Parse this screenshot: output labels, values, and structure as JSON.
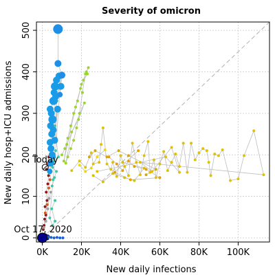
{
  "chart_data": {
    "type": "scatter",
    "title": "Severity of omicron",
    "xlabel": "New daily infections",
    "ylabel": "New daily hosp+ICU admissions",
    "xlim": [
      -3000,
      116000
    ],
    "ylim": [
      -10,
      520
    ],
    "x_ticks": [
      0,
      20000,
      40000,
      60000,
      80000,
      100000
    ],
    "x_tick_labels": [
      "0K",
      "20K",
      "40K",
      "60K",
      "80K",
      "100K"
    ],
    "y_ticks": [
      0,
      100,
      200,
      300,
      400,
      500
    ],
    "y_tick_labels": [
      "0",
      "100",
      "200",
      "300",
      "400",
      "500"
    ],
    "grid": true,
    "reference_line": {
      "style": "dashed",
      "color": "#b0b0b0",
      "points": [
        [
          0,
          0
        ],
        [
          116000,
          520
        ]
      ]
    },
    "annotations": [
      {
        "text": "Today",
        "x": 1500,
        "y": 170
      },
      {
        "text": "Oct 17, 2020",
        "x": 0,
        "y": 0
      }
    ],
    "series": [
      {
        "color": "#0a1a8a",
        "points": [
          [
            1000,
            5,
            3
          ],
          [
            1300,
            2,
            3
          ],
          [
            1600,
            0,
            3
          ],
          [
            1900,
            -1,
            3
          ],
          [
            2200,
            1,
            3
          ],
          [
            2500,
            -1,
            3
          ],
          [
            2800,
            3,
            3
          ],
          [
            1500,
            6,
            3
          ],
          [
            2000,
            4,
            3
          ]
        ]
      },
      {
        "color": "#1a5fd6",
        "points": [
          [
            3000,
            2,
            2
          ],
          [
            4500,
            1,
            2
          ],
          [
            6000,
            0,
            2
          ],
          [
            7500,
            1,
            2
          ],
          [
            9000,
            0,
            2
          ],
          [
            10500,
            0,
            2
          ]
        ]
      },
      {
        "color": "#8a1a1a",
        "points": [
          [
            500,
            20,
            2
          ],
          [
            900,
            30,
            2
          ],
          [
            1200,
            45,
            2
          ],
          [
            1800,
            55,
            2
          ],
          [
            1400,
            75,
            2
          ],
          [
            2400,
            90,
            2
          ],
          [
            2000,
            110,
            2
          ],
          [
            2800,
            130,
            2
          ],
          [
            3200,
            150,
            2
          ],
          [
            2600,
            180,
            2
          ],
          [
            3300,
            195,
            2
          ],
          [
            2100,
            165,
            2
          ]
        ]
      },
      {
        "color": "#d45a1a",
        "points": [
          [
            1500,
            60,
            2
          ],
          [
            2500,
            80,
            2
          ],
          [
            3300,
            120,
            2
          ],
          [
            3900,
            140,
            2
          ],
          [
            4500,
            160,
            2
          ],
          [
            3700,
            175,
            2
          ]
        ]
      },
      {
        "color": "#a0a0a0",
        "points": [
          [
            800,
            25,
            2
          ],
          [
            1800,
            40,
            2
          ],
          [
            2800,
            70,
            2
          ],
          [
            3500,
            95,
            2
          ],
          [
            4300,
            110,
            2
          ]
        ]
      },
      {
        "color": "#3cc7a8",
        "points": [
          [
            5000,
            125,
            2
          ],
          [
            6200,
            145,
            2
          ],
          [
            7200,
            160,
            2
          ],
          [
            5200,
            170,
            2
          ],
          [
            6000,
            185,
            2
          ],
          [
            8200,
            195,
            2
          ],
          [
            7000,
            240,
            2
          ],
          [
            6500,
            270,
            2
          ],
          [
            7500,
            330,
            2
          ],
          [
            8000,
            360,
            2
          ],
          [
            9500,
            390,
            2
          ],
          [
            6800,
            210,
            2
          ],
          [
            5500,
            140,
            2
          ],
          [
            3800,
            48,
            2
          ],
          [
            5200,
            30,
            2
          ],
          [
            6500,
            40,
            2
          ],
          [
            4800,
            70,
            2
          ],
          [
            6500,
            90,
            2
          ]
        ]
      },
      {
        "color": "#1a9be8",
        "points": [
          [
            3800,
            160,
            4
          ],
          [
            4300,
            180,
            5
          ],
          [
            5000,
            200,
            5
          ],
          [
            4000,
            230,
            5
          ],
          [
            4800,
            250,
            5
          ],
          [
            4200,
            270,
            5
          ],
          [
            5200,
            285,
            6
          ],
          [
            4600,
            300,
            5
          ],
          [
            4000,
            310,
            5
          ],
          [
            5700,
            330,
            6
          ],
          [
            6000,
            350,
            5
          ],
          [
            6500,
            365,
            6
          ],
          [
            7200,
            380,
            5
          ],
          [
            8500,
            390,
            5
          ],
          [
            9500,
            365,
            5
          ],
          [
            6800,
            340,
            5
          ],
          [
            5600,
            260,
            5
          ],
          [
            4400,
            215,
            5
          ],
          [
            7800,
            310,
            5
          ],
          [
            6300,
            235,
            5
          ],
          [
            5500,
            195,
            4
          ]
        ]
      },
      {
        "color": "#1f8fe5",
        "points": [
          [
            8000,
            503,
            7
          ],
          [
            8000,
            420,
            5
          ],
          [
            10000,
            392,
            5
          ],
          [
            9000,
            345,
            4
          ]
        ]
      },
      {
        "color": "#9bd42a",
        "points": [
          [
            10000,
            200,
            2
          ],
          [
            11500,
            215,
            2
          ],
          [
            13000,
            240,
            2
          ],
          [
            14500,
            270,
            2
          ],
          [
            16000,
            300,
            2
          ],
          [
            18000,
            330,
            2
          ],
          [
            19500,
            360,
            2
          ],
          [
            21000,
            380,
            2
          ],
          [
            22500,
            400,
            2
          ],
          [
            23500,
            410,
            2
          ],
          [
            22000,
            395,
            2
          ],
          [
            20500,
            350,
            2
          ],
          [
            19000,
            300,
            2
          ],
          [
            17500,
            265,
            2
          ],
          [
            16000,
            235,
            2
          ],
          [
            14500,
            215,
            2
          ],
          [
            13000,
            195,
            2
          ],
          [
            12000,
            180,
            2
          ],
          [
            15000,
            255,
            2
          ],
          [
            18500,
            285,
            2
          ],
          [
            21500,
            325,
            2
          ],
          [
            12500,
            225,
            2
          ],
          [
            11000,
            185,
            2
          ],
          [
            17000,
            315,
            2
          ],
          [
            20000,
            370,
            2
          ],
          [
            23000,
            395,
            2
          ]
        ]
      },
      {
        "color": "#e2c100",
        "points": [
          [
            15000,
            162,
            2
          ],
          [
            19000,
            185,
            2
          ],
          [
            22000,
            170,
            2
          ],
          [
            25000,
            205,
            2
          ],
          [
            26000,
            178,
            2
          ],
          [
            29000,
            182,
            2
          ],
          [
            30000,
            225,
            2
          ],
          [
            31000,
            265,
            2
          ],
          [
            33000,
            178,
            2
          ],
          [
            35000,
            165,
            2
          ],
          [
            36000,
            182,
            2
          ],
          [
            38000,
            148,
            2
          ],
          [
            40000,
            198,
            2
          ],
          [
            42000,
            172,
            2
          ],
          [
            44000,
            150,
            2
          ],
          [
            46000,
            228,
            2
          ],
          [
            48000,
            182,
            2
          ],
          [
            50000,
            152,
            2
          ],
          [
            52000,
            198,
            2
          ],
          [
            54000,
            232,
            2
          ],
          [
            55000,
            158,
            2
          ],
          [
            57000,
            188,
            2
          ],
          [
            58000,
            145,
            2
          ],
          [
            60000,
            178,
            2
          ],
          [
            62000,
            208,
            2
          ],
          [
            64000,
            162,
            2
          ],
          [
            66000,
            182,
            2
          ],
          [
            68000,
            202,
            2
          ],
          [
            70000,
            172,
            2
          ],
          [
            72000,
            228,
            2
          ],
          [
            74000,
            158,
            2
          ],
          [
            76000,
            228,
            2
          ],
          [
            78000,
            188,
            2
          ],
          [
            80000,
            205,
            2
          ],
          [
            82000,
            215,
            2
          ],
          [
            84000,
            210,
            2
          ],
          [
            85000,
            182,
            2
          ],
          [
            86000,
            150,
            2
          ],
          [
            88000,
            202,
            2
          ],
          [
            90000,
            198,
            2
          ],
          [
            92000,
            212,
            2
          ],
          [
            96000,
            138,
            2
          ],
          [
            100000,
            142,
            2
          ],
          [
            103000,
            198,
            2
          ],
          [
            108000,
            258,
            2
          ],
          [
            113000,
            152,
            2
          ],
          [
            50000,
            182,
            2
          ],
          [
            56000,
            160,
            2
          ],
          [
            66000,
            218,
            2
          ],
          [
            70000,
            158,
            2
          ],
          [
            63000,
            195,
            2
          ],
          [
            28000,
            160,
            2
          ]
        ]
      },
      {
        "color": "#e8a000",
        "points": [
          [
            34000,
            195,
            2
          ],
          [
            38000,
            178,
            2
          ],
          [
            41000,
            162,
            2
          ],
          [
            44000,
            185,
            2
          ],
          [
            47000,
            172,
            2
          ],
          [
            53000,
            165,
            2
          ],
          [
            60000,
            145,
            2
          ],
          [
            45000,
            140,
            2
          ],
          [
            37000,
            158,
            2
          ],
          [
            49000,
            210,
            2
          ]
        ]
      },
      {
        "color": "#d4c200",
        "points": [
          [
            26000,
            150,
            2
          ],
          [
            31000,
            135,
            2
          ],
          [
            36000,
            155,
            2
          ],
          [
            42000,
            145,
            2
          ],
          [
            47000,
            138,
            2
          ],
          [
            52000,
            168,
            2
          ],
          [
            41000,
            182,
            2
          ]
        ]
      },
      {
        "color": "#d8a800",
        "points": [
          [
            24000,
            195,
            2
          ],
          [
            27000,
            210,
            2
          ],
          [
            33000,
            195,
            2
          ],
          [
            39000,
            210,
            2
          ],
          [
            44000,
            198,
            2
          ],
          [
            58000,
            165,
            2
          ],
          [
            53000,
            152,
            2
          ]
        ]
      },
      {
        "color": "#f0d800",
        "points": [
          [
            19000,
            175,
            2
          ],
          [
            22000,
            160,
            2
          ],
          [
            25000,
            168,
            2
          ],
          [
            28000,
            195,
            2
          ],
          [
            32000,
            212,
            2
          ]
        ]
      }
    ]
  }
}
